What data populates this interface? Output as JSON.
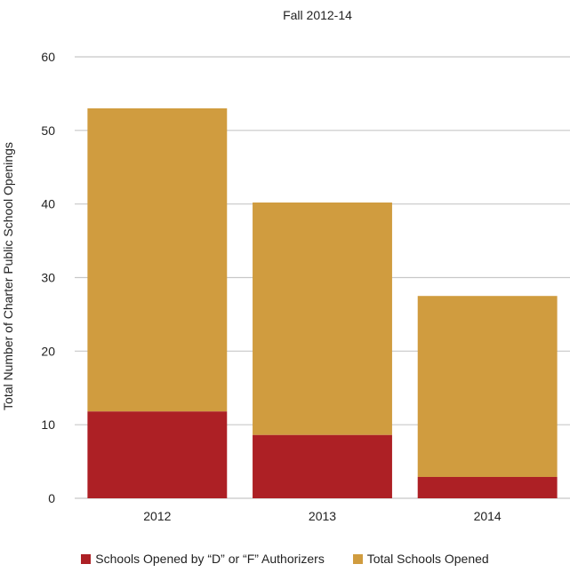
{
  "chart_data": {
    "type": "bar",
    "stacked": true,
    "title": "Fall 2012-14",
    "xlabel": "",
    "ylabel": "Total Number of Charter Public School Openings",
    "categories": [
      "2012",
      "2013",
      "2014"
    ],
    "ylim": [
      0,
      60
    ],
    "yticks": [
      0,
      10,
      20,
      30,
      40,
      50,
      60
    ],
    "grid": true,
    "legend_position": "bottom",
    "series": [
      {
        "name": "Schools Opened by “D” or “F” Authorizers",
        "values": [
          11.8,
          8.6,
          2.9
        ],
        "color": "#ad2025"
      },
      {
        "name": "Total Schools Opened",
        "values": [
          53,
          40.2,
          27.5
        ],
        "color": "#d09c3f"
      }
    ]
  }
}
